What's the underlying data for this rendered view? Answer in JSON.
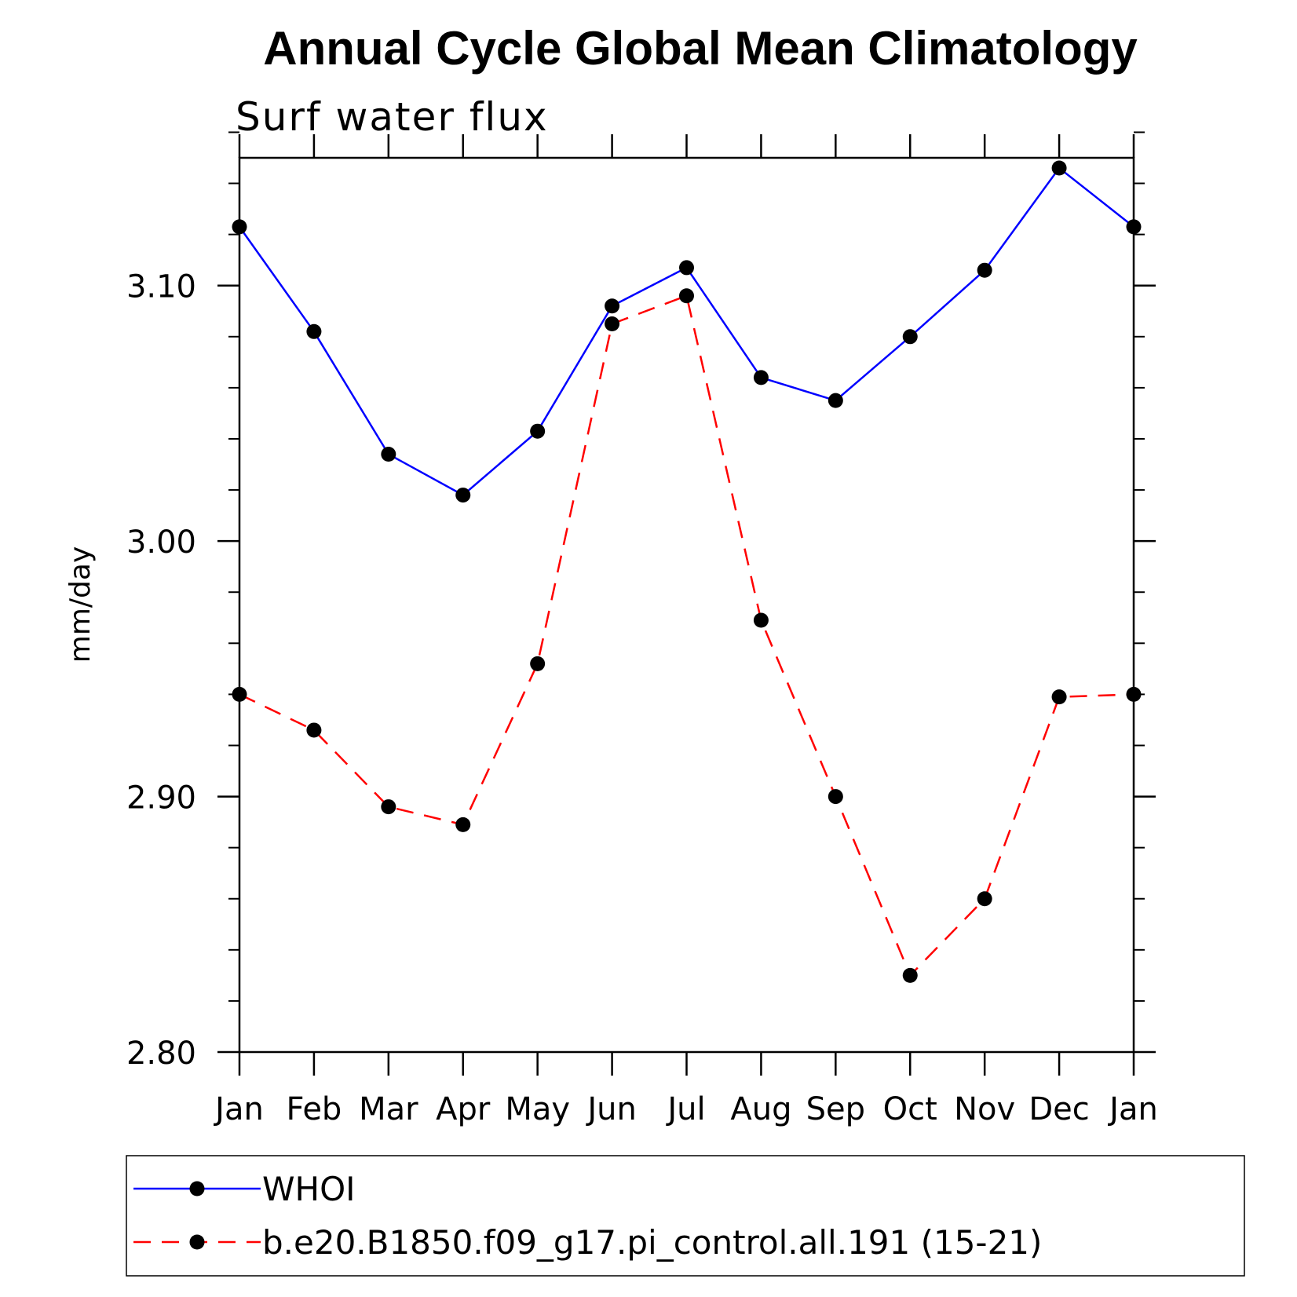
{
  "chart_data": {
    "type": "line",
    "title": "Annual Cycle Global Mean Climatology",
    "subtitle": "Surf water flux",
    "xlabel": "",
    "ylabel": "mm/day",
    "categories": [
      "Jan",
      "Feb",
      "Mar",
      "Apr",
      "May",
      "Jun",
      "Jul",
      "Aug",
      "Sep",
      "Oct",
      "Nov",
      "Dec",
      "Jan"
    ],
    "ylim": [
      2.8,
      3.15
    ],
    "yticks": [
      2.8,
      2.9,
      3.0,
      3.1
    ],
    "ytick_labels": [
      "2.80",
      "2.90",
      "3.00",
      "3.10"
    ],
    "yminor_step": 0.02,
    "grid": false,
    "legend_position": "bottom",
    "series": [
      {
        "name": "WHOI",
        "color": "#0000ff",
        "dash": "solid",
        "values": [
          3.123,
          3.082,
          3.034,
          3.018,
          3.043,
          3.092,
          3.107,
          3.064,
          3.055,
          3.08,
          3.106,
          3.146,
          3.123
        ]
      },
      {
        "name": "b.e20.B1850.f09_g17.pi_control.all.191 (15-21)",
        "color": "#ff0000",
        "dash": "dashed",
        "values": [
          2.94,
          2.926,
          2.896,
          2.889,
          2.952,
          3.085,
          3.096,
          2.969,
          2.9,
          2.83,
          2.86,
          2.939,
          2.94
        ]
      }
    ]
  }
}
